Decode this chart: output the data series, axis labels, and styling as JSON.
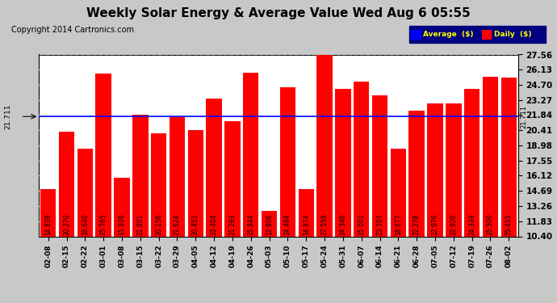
{
  "title": "Weekly Solar Energy & Average Value Wed Aug 6 05:55",
  "copyright": "Copyright 2014 Cartronics.com",
  "categories": [
    "02-08",
    "02-15",
    "02-22",
    "03-01",
    "03-08",
    "03-15",
    "03-22",
    "03-29",
    "04-05",
    "04-12",
    "04-19",
    "04-26",
    "05-03",
    "05-10",
    "05-17",
    "05-24",
    "05-31",
    "06-07",
    "06-14",
    "06-21",
    "06-28",
    "07-05",
    "07-12",
    "07-19",
    "07-26",
    "08-02"
  ],
  "values": [
    14.839,
    20.27,
    18.64,
    25.765,
    15.936,
    21.891,
    20.156,
    21.624,
    20.451,
    23.404,
    21.293,
    25.844,
    12.806,
    24.484,
    14.874,
    27.559,
    24.346,
    25.001,
    23.707,
    18.677,
    22.278,
    22.976,
    22.92,
    24.339,
    25.5,
    25.415
  ],
  "average": 21.711,
  "bar_color": "#ff0000",
  "avg_line_color": "#0000ff",
  "background_color": "#c8c8c8",
  "plot_bg_color": "#ffffff",
  "yticks": [
    10.4,
    11.83,
    13.26,
    14.69,
    16.12,
    17.55,
    18.98,
    20.41,
    21.84,
    23.27,
    24.7,
    26.13,
    27.56
  ],
  "ylim": [
    10.4,
    27.56
  ],
  "legend_avg_color": "#0000ff",
  "legend_daily_color": "#ff0000",
  "legend_text_color": "#ffff00",
  "legend_bg_color": "#000080",
  "title_fontsize": 11,
  "copyright_fontsize": 7,
  "bar_label_fontsize": 5.5,
  "tick_label_fontsize": 6.5,
  "ytick_label_fontsize": 7.5
}
